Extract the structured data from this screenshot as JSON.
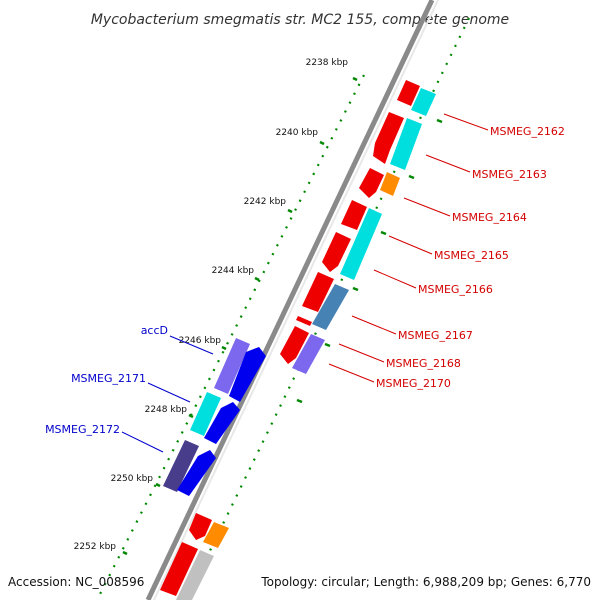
{
  "title": "Mycobacterium smegmatis str. MC2 155, complete genome",
  "footer": {
    "accession": "Accession: NC_008596",
    "summary": "Topology: circular; Length: 6,988,209 bp; Genes: 6,770"
  },
  "ticks": [
    "2238 kbp",
    "2240 kbp",
    "2242 kbp",
    "2244 kbp",
    "2246 kbp",
    "2248 kbp",
    "2250 kbp",
    "2252 kbp"
  ],
  "right_labels": [
    "MSMEG_2162",
    "MSMEG_2163",
    "MSMEG_2164",
    "MSMEG_2165",
    "MSMEG_2166",
    "MSMEG_2167",
    "MSMEG_2168",
    "MSMEG_2170"
  ],
  "left_labels": [
    "accD",
    "MSMEG_2171",
    "MSMEG_2172"
  ],
  "colors": {
    "backbone": "#8a8a8a",
    "red_gene": "#ee0000",
    "cyan_gene": "#00dede",
    "orange_gene": "#ff8c00",
    "steel_gene": "#4682b4",
    "purple_gene": "#7b68ee",
    "blue_gene": "#0000ee",
    "dark_purple_gene": "#483d8b",
    "gray_gene": "#c0c0c0",
    "green_dots": "#008800",
    "right_label_color": "#d40000",
    "left_label_color": "#0000cc"
  }
}
